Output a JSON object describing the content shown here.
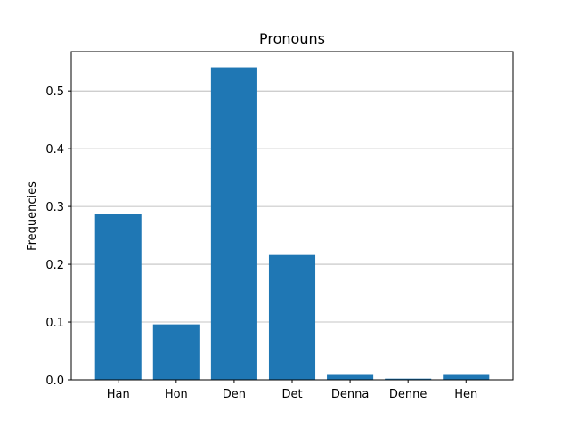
{
  "chart_data": {
    "type": "bar",
    "title": "Pronouns",
    "xlabel": "",
    "ylabel": "Frequencies",
    "categories": [
      "Han",
      "Hon",
      "Den",
      "Det",
      "Denna",
      "Denne",
      "Hen"
    ],
    "values": [
      0.287,
      0.096,
      0.541,
      0.216,
      0.01,
      0.002,
      0.01
    ],
    "ylim": [
      0,
      0.568
    ],
    "yticks": [
      0.0,
      0.1,
      0.2,
      0.3,
      0.4,
      0.5
    ],
    "ytick_labels": [
      "0.0",
      "0.1",
      "0.2",
      "0.3",
      "0.4",
      "0.5"
    ],
    "grid": "y",
    "bar_color": "#1f77b4",
    "grid_color": "#b0b0b0"
  }
}
